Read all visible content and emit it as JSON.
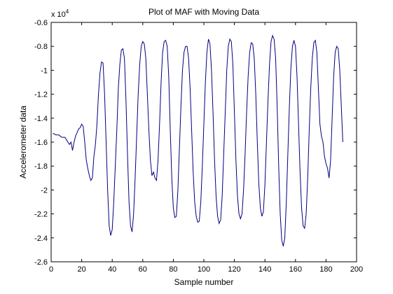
{
  "chart_data": {
    "type": "line",
    "title": "Plot of MAF with Moving Data",
    "xlabel": "Sample number",
    "ylabel": "Accelerometer data",
    "y_multiplier": {
      "base": "x 10",
      "exponent": "4"
    },
    "xlim": [
      0,
      200
    ],
    "xticks": [
      0,
      20,
      40,
      60,
      80,
      100,
      120,
      140,
      160,
      180,
      200
    ],
    "ylim": [
      -2.6,
      -0.6
    ],
    "yticks": [
      -2.6,
      -2.4,
      -2.2,
      -2,
      -1.8,
      -1.6,
      -1.4,
      -1.2,
      -1,
      -0.8,
      -0.6
    ],
    "grid": false,
    "series": [
      {
        "name": "MAF",
        "color": "#00007f",
        "x": [
          1,
          2,
          3,
          4,
          5,
          6,
          7,
          8,
          9,
          10,
          11,
          12,
          13,
          14,
          15,
          16,
          17,
          18,
          19,
          20,
          21,
          22,
          23,
          24,
          25,
          26,
          27,
          28,
          29,
          30,
          31,
          32,
          33,
          34,
          35,
          36,
          37,
          38,
          39,
          40,
          41,
          42,
          43,
          44,
          45,
          46,
          47,
          48,
          49,
          50,
          51,
          52,
          53,
          54,
          55,
          56,
          57,
          58,
          59,
          60,
          61,
          62,
          63,
          64,
          65,
          66,
          67,
          68,
          69,
          70,
          71,
          72,
          73,
          74,
          75,
          76,
          77,
          78,
          79,
          80,
          81,
          82,
          83,
          84,
          85,
          86,
          87,
          88,
          89,
          90,
          91,
          92,
          93,
          94,
          95,
          96,
          97,
          98,
          99,
          100,
          101,
          102,
          103,
          104,
          105,
          106,
          107,
          108,
          109,
          110,
          111,
          112,
          113,
          114,
          115,
          116,
          117,
          118,
          119,
          120,
          121,
          122,
          123,
          124,
          125,
          126,
          127,
          128,
          129,
          130,
          131,
          132,
          133,
          134,
          135,
          136,
          137,
          138,
          139,
          140,
          141,
          142,
          143,
          144,
          145,
          146,
          147,
          148,
          149,
          150,
          151,
          152,
          153,
          154,
          155,
          156,
          157,
          158,
          159,
          160,
          161,
          162,
          163,
          164,
          165,
          166,
          167,
          168,
          169,
          170,
          171,
          172,
          173,
          174,
          175,
          176,
          177,
          178,
          179,
          180,
          181,
          182,
          183,
          184,
          185,
          186,
          187,
          188,
          189,
          190,
          191
        ],
        "values": [
          -1.53,
          -1.53,
          -1.54,
          -1.54,
          -1.54,
          -1.55,
          -1.56,
          -1.56,
          -1.56,
          -1.58,
          -1.6,
          -1.62,
          -1.6,
          -1.67,
          -1.6,
          -1.55,
          -1.52,
          -1.49,
          -1.48,
          -1.45,
          -1.47,
          -1.6,
          -1.75,
          -1.82,
          -1.88,
          -1.92,
          -1.9,
          -1.72,
          -1.62,
          -1.45,
          -1.2,
          -1.02,
          -0.93,
          -0.94,
          -1.2,
          -1.6,
          -2.0,
          -2.3,
          -2.38,
          -2.33,
          -2.1,
          -1.8,
          -1.5,
          -1.15,
          -0.95,
          -0.83,
          -0.82,
          -0.9,
          -1.25,
          -1.7,
          -2.1,
          -2.3,
          -2.35,
          -2.2,
          -1.9,
          -1.55,
          -1.2,
          -0.95,
          -0.8,
          -0.76,
          -0.78,
          -0.9,
          -1.2,
          -1.5,
          -1.75,
          -1.88,
          -1.85,
          -1.9,
          -1.92,
          -1.75,
          -1.45,
          -1.1,
          -0.85,
          -0.76,
          -0.75,
          -0.8,
          -1.05,
          -1.5,
          -1.9,
          -2.15,
          -2.23,
          -2.22,
          -2.0,
          -1.65,
          -1.3,
          -1.0,
          -0.85,
          -0.8,
          -0.8,
          -0.9,
          -1.15,
          -1.5,
          -1.85,
          -2.1,
          -2.22,
          -2.27,
          -2.26,
          -2.1,
          -1.8,
          -1.45,
          -1.1,
          -0.85,
          -0.74,
          -0.78,
          -1.0,
          -1.35,
          -1.75,
          -2.05,
          -2.22,
          -2.28,
          -2.25,
          -2.05,
          -1.7,
          -1.35,
          -1.0,
          -0.8,
          -0.74,
          -0.76,
          -0.95,
          -1.35,
          -1.75,
          -2.05,
          -2.2,
          -2.24,
          -2.2,
          -2.0,
          -1.7,
          -1.35,
          -1.05,
          -0.85,
          -0.77,
          -0.78,
          -0.9,
          -1.2,
          -1.6,
          -1.95,
          -2.15,
          -2.22,
          -2.18,
          -1.95,
          -1.6,
          -1.25,
          -0.95,
          -0.76,
          -0.71,
          -0.74,
          -0.9,
          -1.3,
          -1.8,
          -2.2,
          -2.42,
          -2.47,
          -2.4,
          -2.1,
          -1.7,
          -1.3,
          -0.98,
          -0.8,
          -0.75,
          -0.8,
          -1.05,
          -1.45,
          -1.85,
          -2.15,
          -2.3,
          -2.32,
          -2.2,
          -1.9,
          -1.5,
          -1.15,
          -0.9,
          -0.77,
          -0.75,
          -0.85,
          -1.15,
          -1.45,
          -1.55,
          -1.6,
          -1.72,
          -1.78,
          -1.82,
          -1.9,
          -1.75,
          -1.4,
          -1.05,
          -0.85,
          -0.8,
          -0.82,
          -1.0,
          -1.3,
          -1.6
        ]
      }
    ]
  }
}
